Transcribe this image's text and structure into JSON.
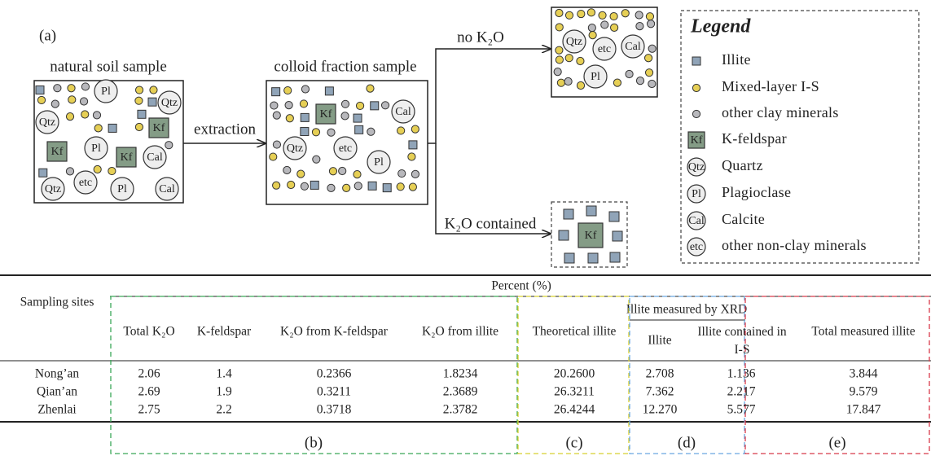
{
  "panel_a": {
    "label": "(a)",
    "natural_soil_sample": "natural soil sample",
    "extraction": "extraction",
    "colloid_fraction_sample": "colloid fraction sample",
    "no_k2o": "no K₂O",
    "k2o_contained": "K₂O contained",
    "mineral_tags": {
      "qtz": "Qtz",
      "pl": "Pl",
      "cal": "Cal",
      "etc": "etc",
      "kf": "Kf"
    },
    "legend": {
      "title": "Legend",
      "items": [
        "Illite",
        "Mixed-layer I-S",
        "other clay minerals",
        "K-feldspar",
        "Quartz",
        "Plagioclase",
        "Calcite",
        "other non-clay minerals"
      ]
    }
  },
  "table": {
    "group_header": "Percent (%)",
    "row_header": "Sampling sites",
    "xrd_header": "Illite measured by XRD",
    "columns": [
      "Total K₂O",
      "K-feldspar",
      "K₂O from K-feldspar",
      "K₂O from illite",
      "Theoretical illite",
      "Illite",
      "Illite contained in I-S",
      "Total measured illite"
    ],
    "rows": [
      [
        "Nong’an",
        "2.06",
        "1.4",
        "0.2366",
        "1.8234",
        "20.2600",
        "2.708",
        "1.136",
        "3.844"
      ],
      [
        "Qian’an",
        "2.69",
        "1.9",
        "0.3211",
        "2.3689",
        "26.3211",
        "7.362",
        "2.217",
        "9.579"
      ],
      [
        "Zhenlai",
        "2.75",
        "2.2",
        "0.3718",
        "2.3782",
        "26.4244",
        "12.270",
        "5.577",
        "17.847"
      ]
    ],
    "panel_labels": [
      "(b)",
      "(c)",
      "(d)",
      "(e)"
    ]
  }
}
